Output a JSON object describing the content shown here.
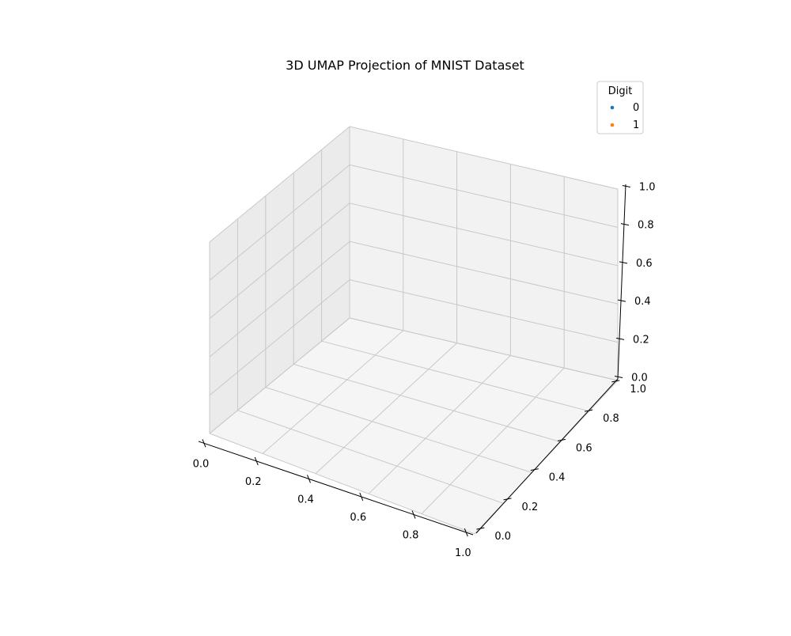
{
  "chart_data": {
    "type": "scatter",
    "title": "3D UMAP Projection of MNIST Dataset",
    "dimensions": 3,
    "xlim": [
      0,
      1
    ],
    "ylim": [
      0,
      1
    ],
    "zlim": [
      0,
      1
    ],
    "x_ticks": [
      "0.0",
      "0.2",
      "0.4",
      "0.6",
      "0.8",
      "1.0"
    ],
    "y_ticks": [
      "0.0",
      "0.2",
      "0.4",
      "0.6",
      "0.8",
      "1.0"
    ],
    "z_ticks": [
      "0.0",
      "0.2",
      "0.4",
      "0.6",
      "0.8",
      "1.0"
    ],
    "grid": true,
    "legend": {
      "title": "Digit",
      "placement": "top-right",
      "entries": [
        {
          "label": "0",
          "color": "#1f77b4"
        },
        {
          "label": "1",
          "color": "#ff7f0e"
        }
      ]
    },
    "series": [
      {
        "name": "0",
        "color": "#1f77b4",
        "points": []
      },
      {
        "name": "1",
        "color": "#ff7f0e",
        "points": []
      }
    ]
  },
  "colors": {
    "pane_left": "#ebebeb",
    "pane_back": "#f2f2f2",
    "pane_floor": "#f5f5f5",
    "grid": "#c8c8c8",
    "axis": "#000000"
  }
}
